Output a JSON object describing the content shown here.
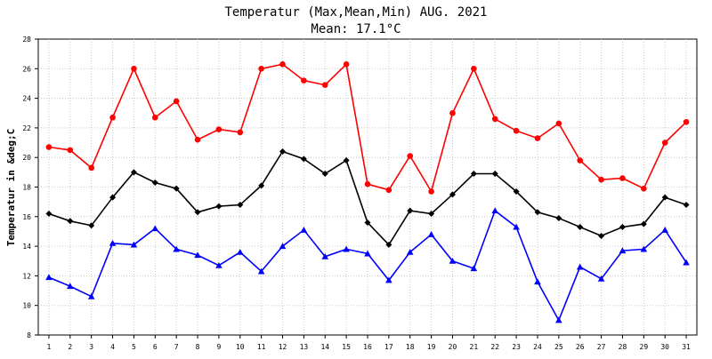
{
  "chart_data": {
    "type": "line",
    "title": "Temperatur (Max,Mean,Min) AUG. 2021",
    "subtitle": "Mean: 17.1°C",
    "xlabel": "",
    "ylabel": "Temperatur in &deg;C",
    "x": [
      1,
      2,
      3,
      4,
      5,
      6,
      7,
      8,
      9,
      10,
      11,
      12,
      13,
      14,
      15,
      16,
      17,
      18,
      19,
      20,
      21,
      22,
      23,
      24,
      25,
      26,
      27,
      28,
      29,
      30,
      31
    ],
    "ylim": [
      8,
      28
    ],
    "yticks": [
      8,
      10,
      12,
      14,
      16,
      18,
      20,
      22,
      24,
      26,
      28
    ],
    "grid": true,
    "legend": "none",
    "series": [
      {
        "key": "max",
        "color": "#ff0000",
        "marker": "circle",
        "values": [
          20.7,
          20.5,
          19.3,
          22.7,
          26.0,
          22.7,
          23.8,
          21.2,
          21.9,
          21.7,
          26.0,
          26.3,
          25.2,
          24.9,
          26.3,
          18.2,
          17.8,
          20.1,
          17.7,
          23.0,
          26.0,
          22.6,
          21.8,
          21.3,
          22.3,
          19.8,
          18.5,
          18.6,
          17.9,
          21.0,
          22.4
        ]
      },
      {
        "key": "mean",
        "color": "#000000",
        "marker": "diamond",
        "values": [
          16.2,
          15.7,
          15.4,
          17.3,
          19.0,
          18.3,
          17.9,
          16.3,
          16.7,
          16.8,
          18.1,
          20.4,
          19.9,
          18.9,
          19.8,
          15.6,
          14.1,
          16.4,
          16.2,
          17.5,
          18.9,
          18.9,
          17.7,
          16.3,
          15.9,
          15.3,
          14.7,
          15.3,
          15.5,
          17.3,
          16.8
        ]
      },
      {
        "key": "min",
        "color": "#0000ff",
        "marker": "triangle",
        "values": [
          11.9,
          11.3,
          10.6,
          14.2,
          14.1,
          15.2,
          13.8,
          13.4,
          12.7,
          13.6,
          12.3,
          14.0,
          15.1,
          13.3,
          13.8,
          13.5,
          11.7,
          13.6,
          14.8,
          13.0,
          12.5,
          16.4,
          15.3,
          11.6,
          9.0,
          12.6,
          11.8,
          13.7,
          13.8,
          15.1,
          12.9
        ]
      }
    ]
  }
}
